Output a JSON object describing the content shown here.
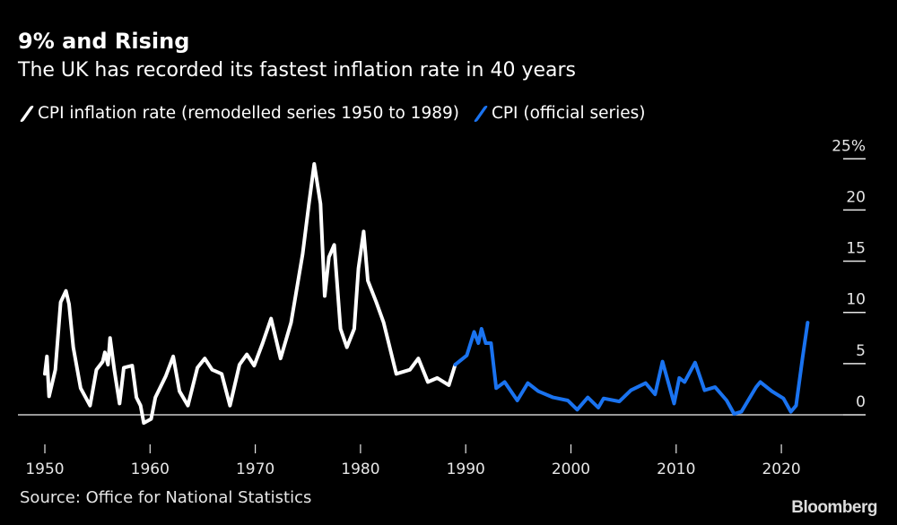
{
  "title": "9% and Rising",
  "subtitle": "The UK has recorded its fastest inflation rate in 40 years",
  "source": "Source: Office for National Statistics",
  "brand": "Bloomberg",
  "colors": {
    "background": "#000000",
    "remodelled": "#ffffff",
    "official": "#1a73f0",
    "zero_line": "#cccccc"
  },
  "chart_data": {
    "type": "line",
    "title": "9% and Rising",
    "subtitle": "The UK has recorded its fastest inflation rate in 40 years",
    "xlabel": "",
    "ylabel": "",
    "xlim": [
      1948,
      2026
    ],
    "ylim": [
      -1,
      25
    ],
    "x_ticks": [
      "1950",
      "1960",
      "1970",
      "1980",
      "1990",
      "2000",
      "2010",
      "2020"
    ],
    "y_ticks": [
      "25%",
      "20",
      "15",
      "10",
      "5",
      "0"
    ],
    "y_tick_values": [
      25,
      20,
      15,
      10,
      5,
      0
    ],
    "y_axis_side": "right",
    "grid": false,
    "legend_placement": "top-left",
    "series": [
      {
        "name": "CPI inflation rate (remodelled series 1950 to 1989)",
        "color": "#ffffff",
        "points": [
          [
            1950.0,
            4.0
          ],
          [
            1950.2,
            5.7
          ],
          [
            1950.4,
            1.8
          ],
          [
            1951.0,
            4.4
          ],
          [
            1951.5,
            11.0
          ],
          [
            1952.0,
            12.1
          ],
          [
            1952.3,
            10.8
          ],
          [
            1952.7,
            6.6
          ],
          [
            1953.4,
            2.6
          ],
          [
            1954.3,
            0.9
          ],
          [
            1954.9,
            4.4
          ],
          [
            1955.5,
            5.2
          ],
          [
            1955.7,
            6.1
          ],
          [
            1956.0,
            4.9
          ],
          [
            1956.2,
            7.5
          ],
          [
            1956.6,
            4.4
          ],
          [
            1957.1,
            1.1
          ],
          [
            1957.5,
            4.6
          ],
          [
            1958.3,
            4.8
          ],
          [
            1958.7,
            1.7
          ],
          [
            1959.1,
            0.9
          ],
          [
            1959.4,
            -0.8
          ],
          [
            1960.1,
            -0.4
          ],
          [
            1960.5,
            1.7
          ],
          [
            1961.5,
            3.8
          ],
          [
            1962.2,
            5.7
          ],
          [
            1962.8,
            2.3
          ],
          [
            1963.6,
            0.9
          ],
          [
            1964.5,
            4.6
          ],
          [
            1965.2,
            5.5
          ],
          [
            1965.9,
            4.4
          ],
          [
            1966.8,
            4.0
          ],
          [
            1967.6,
            0.9
          ],
          [
            1968.5,
            4.9
          ],
          [
            1969.2,
            5.9
          ],
          [
            1969.9,
            4.8
          ],
          [
            1970.7,
            7.0
          ],
          [
            1971.5,
            9.4
          ],
          [
            1972.4,
            5.5
          ],
          [
            1973.4,
            9.0
          ],
          [
            1974.5,
            15.7
          ],
          [
            1975.1,
            20.6
          ],
          [
            1975.6,
            24.5
          ],
          [
            1976.2,
            20.6
          ],
          [
            1976.6,
            11.6
          ],
          [
            1977.0,
            15.4
          ],
          [
            1977.5,
            16.6
          ],
          [
            1978.1,
            8.4
          ],
          [
            1978.7,
            6.6
          ],
          [
            1979.4,
            8.4
          ],
          [
            1979.8,
            14.3
          ],
          [
            1980.3,
            17.9
          ],
          [
            1980.7,
            13.1
          ],
          [
            1981.5,
            11.0
          ],
          [
            1982.2,
            9.0
          ],
          [
            1983.4,
            4.0
          ],
          [
            1984.7,
            4.4
          ],
          [
            1985.5,
            5.5
          ],
          [
            1986.4,
            3.2
          ],
          [
            1987.3,
            3.6
          ],
          [
            1988.4,
            2.9
          ],
          [
            1989.0,
            4.9
          ]
        ]
      },
      {
        "name": "CPI (official series)",
        "color": "#1a73f0",
        "points": [
          [
            1989.0,
            4.9
          ],
          [
            1990.1,
            5.8
          ],
          [
            1990.8,
            8.1
          ],
          [
            1991.2,
            7.0
          ],
          [
            1991.5,
            8.4
          ],
          [
            1991.9,
            7.0
          ],
          [
            1992.4,
            7.0
          ],
          [
            1992.9,
            2.6
          ],
          [
            1993.7,
            3.2
          ],
          [
            1994.9,
            1.4
          ],
          [
            1995.9,
            3.1
          ],
          [
            1996.9,
            2.3
          ],
          [
            1998.3,
            1.7
          ],
          [
            1999.7,
            1.4
          ],
          [
            2000.6,
            0.5
          ],
          [
            2001.6,
            1.7
          ],
          [
            2002.6,
            0.7
          ],
          [
            2003.1,
            1.6
          ],
          [
            2004.6,
            1.3
          ],
          [
            2005.7,
            2.4
          ],
          [
            2007.1,
            3.1
          ],
          [
            2008.0,
            2.0
          ],
          [
            2008.7,
            5.2
          ],
          [
            2009.8,
            1.1
          ],
          [
            2010.3,
            3.6
          ],
          [
            2010.8,
            3.2
          ],
          [
            2011.8,
            5.1
          ],
          [
            2012.7,
            2.4
          ],
          [
            2013.7,
            2.7
          ],
          [
            2014.8,
            1.4
          ],
          [
            2015.5,
            0.1
          ],
          [
            2016.2,
            0.3
          ],
          [
            2017.6,
            2.7
          ],
          [
            2018.0,
            3.2
          ],
          [
            2019.1,
            2.3
          ],
          [
            2020.2,
            1.6
          ],
          [
            2020.9,
            0.3
          ],
          [
            2021.4,
            0.9
          ],
          [
            2022.0,
            5.5
          ],
          [
            2022.5,
            9.0
          ]
        ]
      }
    ]
  }
}
